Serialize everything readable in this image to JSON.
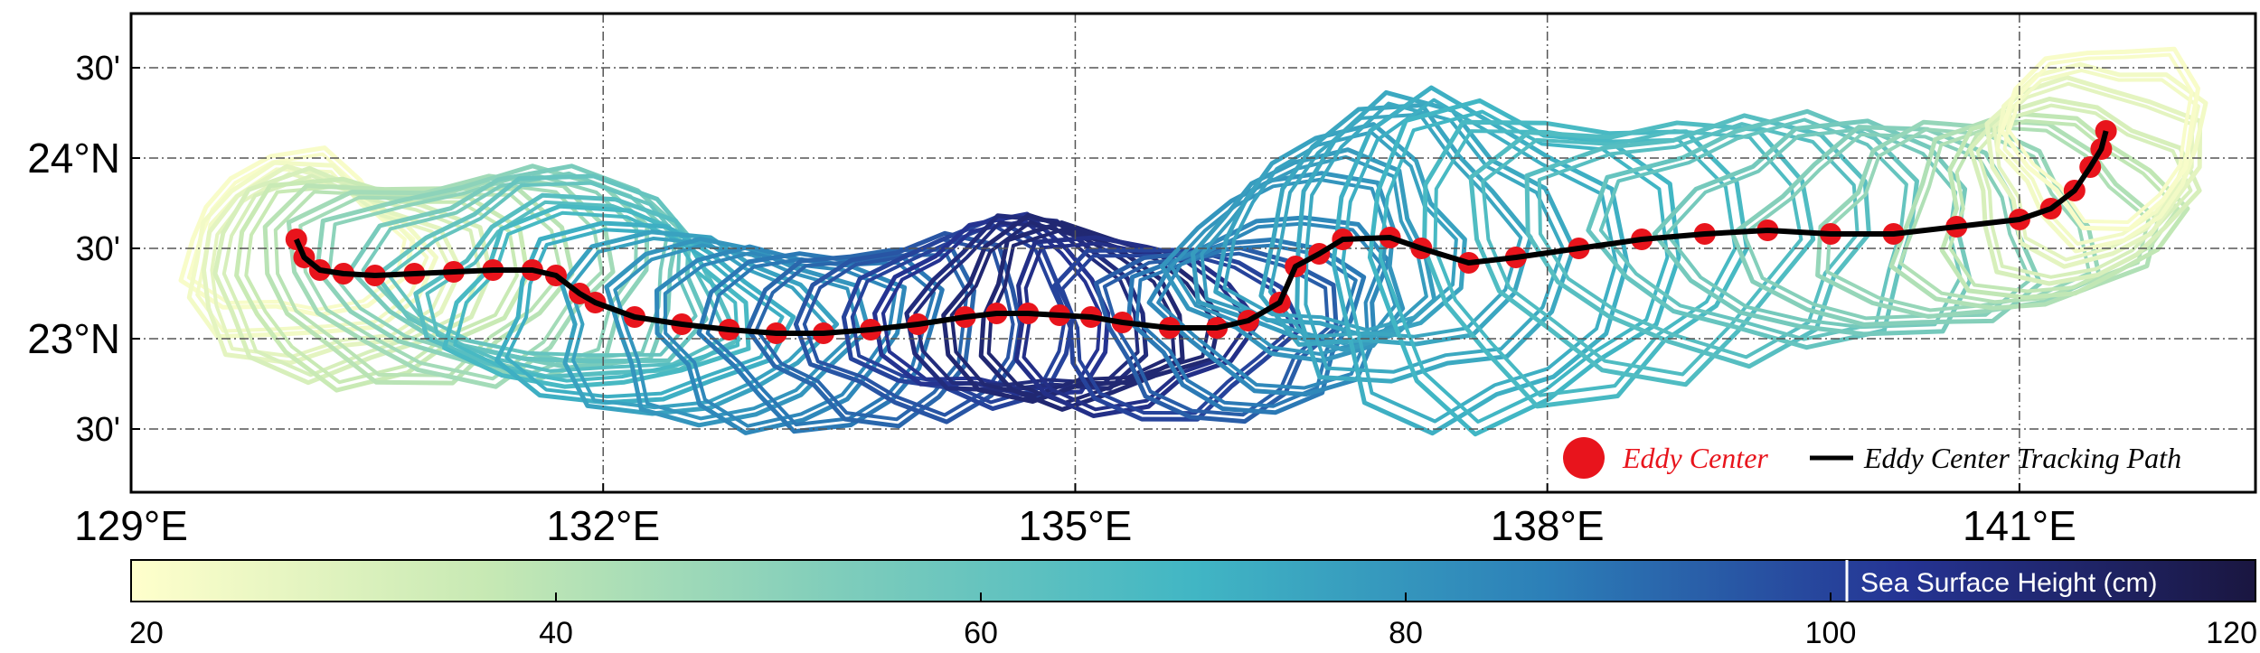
{
  "map": {
    "lon_range": [
      129.0,
      142.5
    ],
    "lat_range": [
      22.15,
      24.8
    ],
    "lon_ticks": [
      {
        "value": 129,
        "label": "129°E"
      },
      {
        "value": 132,
        "label": "132°E"
      },
      {
        "value": 135,
        "label": "135°E"
      },
      {
        "value": 138,
        "label": "138°E"
      },
      {
        "value": 141,
        "label": "141°E"
      }
    ],
    "lat_ticks": [
      {
        "value": 22.5,
        "label": "30'"
      },
      {
        "value": 23.0,
        "label": "23°N"
      },
      {
        "value": 23.5,
        "label": "30'"
      },
      {
        "value": 24.0,
        "label": "24°N"
      },
      {
        "value": 24.5,
        "label": "30'"
      }
    ],
    "grid": "dash-dot",
    "legend": {
      "position": "bottom-right",
      "center_label": "Eddy Center",
      "path_label": "Eddy Center Tracking Path",
      "center_color": "#e8141c",
      "path_color": "#000000"
    }
  },
  "colorbar": {
    "label": "Sea Surface Height (cm)",
    "range": [
      20,
      120
    ],
    "ticks": [
      "20",
      "40",
      "60",
      "80",
      "100",
      "120"
    ],
    "colormap": [
      "#ffffcc",
      "#c7e9b4",
      "#7fcdbb",
      "#41b6c4",
      "#2c7fb8",
      "#253494",
      "#1a1640"
    ]
  },
  "chart_data": {
    "type": "eddy_track",
    "track_lon": [
      130.05,
      130.1,
      130.2,
      130.35,
      130.55,
      130.8,
      131.05,
      131.3,
      131.55,
      131.7,
      131.85,
      131.95,
      132.2,
      132.5,
      132.8,
      133.1,
      133.4,
      133.7,
      134.0,
      134.3,
      134.5,
      134.7,
      134.9,
      135.1,
      135.3,
      135.6,
      135.9,
      136.1,
      136.3,
      136.4,
      136.55,
      136.7,
      137.0,
      137.2,
      137.5,
      137.8,
      138.2,
      138.6,
      139.0,
      139.4,
      139.8,
      140.2,
      140.6,
      141.0,
      141.2,
      141.35,
      141.45,
      141.52,
      141.55
    ],
    "track_lat": [
      23.55,
      23.45,
      23.38,
      23.36,
      23.35,
      23.36,
      23.37,
      23.38,
      23.38,
      23.35,
      23.25,
      23.2,
      23.12,
      23.08,
      23.05,
      23.03,
      23.03,
      23.05,
      23.08,
      23.12,
      23.14,
      23.14,
      23.13,
      23.12,
      23.09,
      23.06,
      23.06,
      23.1,
      23.2,
      23.4,
      23.47,
      23.55,
      23.56,
      23.5,
      23.42,
      23.45,
      23.5,
      23.55,
      23.58,
      23.6,
      23.58,
      23.58,
      23.62,
      23.66,
      23.72,
      23.82,
      23.95,
      24.05,
      24.15
    ],
    "track_ssh": [
      22,
      24,
      28,
      32,
      36,
      40,
      45,
      50,
      55,
      60,
      64,
      68,
      72,
      76,
      80,
      84,
      88,
      92,
      96,
      100,
      104,
      108,
      110,
      110,
      106,
      100,
      94,
      88,
      84,
      80,
      78,
      76,
      75,
      74,
      72,
      70,
      68,
      66,
      64,
      60,
      56,
      52,
      48,
      42,
      38,
      32,
      28,
      24,
      22
    ],
    "contour_radius_deg": {
      "lon": [
        0.7,
        0.9,
        1.05,
        0.95,
        0.8,
        0.7,
        0.75,
        0.75,
        0.7,
        0.75,
        0.95,
        1.1,
        0.9,
        0.7,
        0.6
      ],
      "lat": [
        0.45,
        0.55,
        0.55,
        0.5,
        0.5,
        0.48,
        0.48,
        0.48,
        0.48,
        0.55,
        0.9,
        0.65,
        0.55,
        0.5,
        0.5
      ]
    }
  }
}
